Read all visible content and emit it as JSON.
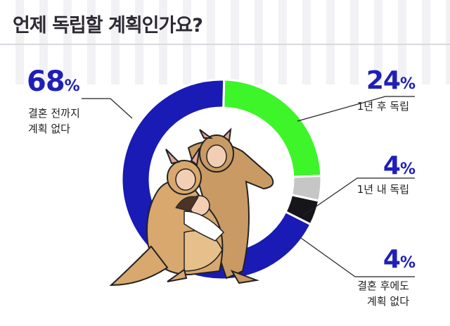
{
  "title": "언제 독립할 계획인가요?",
  "colors": {
    "accent": "#1f1fb8",
    "slice_none": "#1a1ab5",
    "slice_1yr_after": "#3df529",
    "slice_1yr_within": "#c6c6c6",
    "slice_after_marriage": "#16161a"
  },
  "chart_data": {
    "type": "pie",
    "donut": true,
    "categories": [
      "결혼 전까지 계획 없다",
      "1년 후 독립",
      "1년 내 독립",
      "결혼 후에도 계획 없다"
    ],
    "values": [
      68,
      24,
      4,
      4
    ],
    "value_labels": [
      {
        "num": "68",
        "unit": "%",
        "text_lines": [
          "결혼 전까지",
          "계획 없다"
        ]
      },
      {
        "num": "24",
        "unit": "%",
        "text_lines": [
          "1년 후 독립"
        ]
      },
      {
        "num": "4",
        "unit": "%",
        "text_lines": [
          "1년 내 독립"
        ]
      },
      {
        "num": "4",
        "unit": "%",
        "text_lines": [
          "결혼 후에도",
          "계획 없다"
        ]
      }
    ]
  },
  "illustration": "kangaroo-family-icon"
}
